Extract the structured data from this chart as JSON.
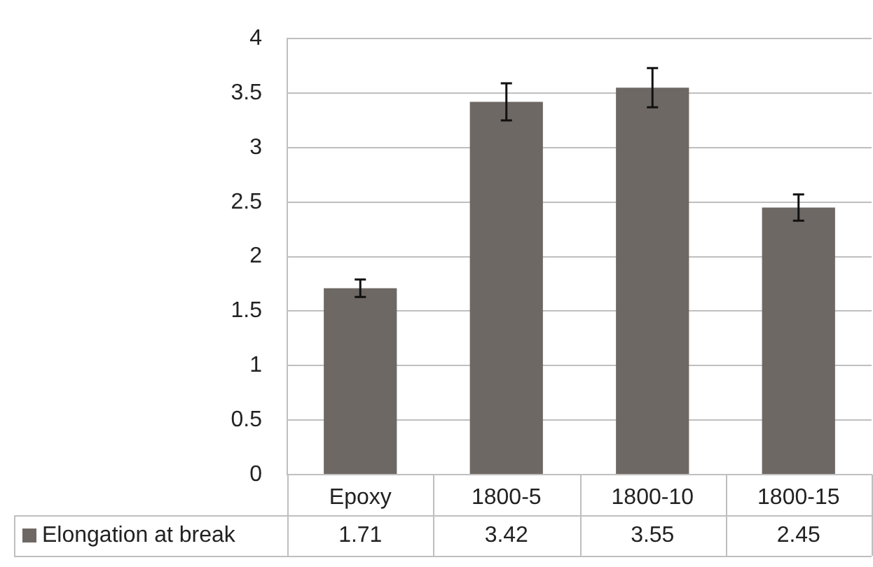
{
  "chart_data": {
    "type": "bar",
    "categories": [
      "Epoxy",
      "1800-5",
      "1800-10",
      "1800-15"
    ],
    "series": [
      {
        "name": "Elongation at break",
        "color": "#6e6864",
        "values": [
          1.71,
          3.42,
          3.55,
          2.45
        ],
        "errors": [
          0.08,
          0.17,
          0.18,
          0.12
        ]
      }
    ],
    "ylim": [
      0,
      4
    ],
    "yticks": [
      0,
      0.5,
      1,
      1.5,
      2,
      2.5,
      3,
      3.5,
      4
    ],
    "grid": "y",
    "legend": "bottom",
    "data_labels": true
  }
}
